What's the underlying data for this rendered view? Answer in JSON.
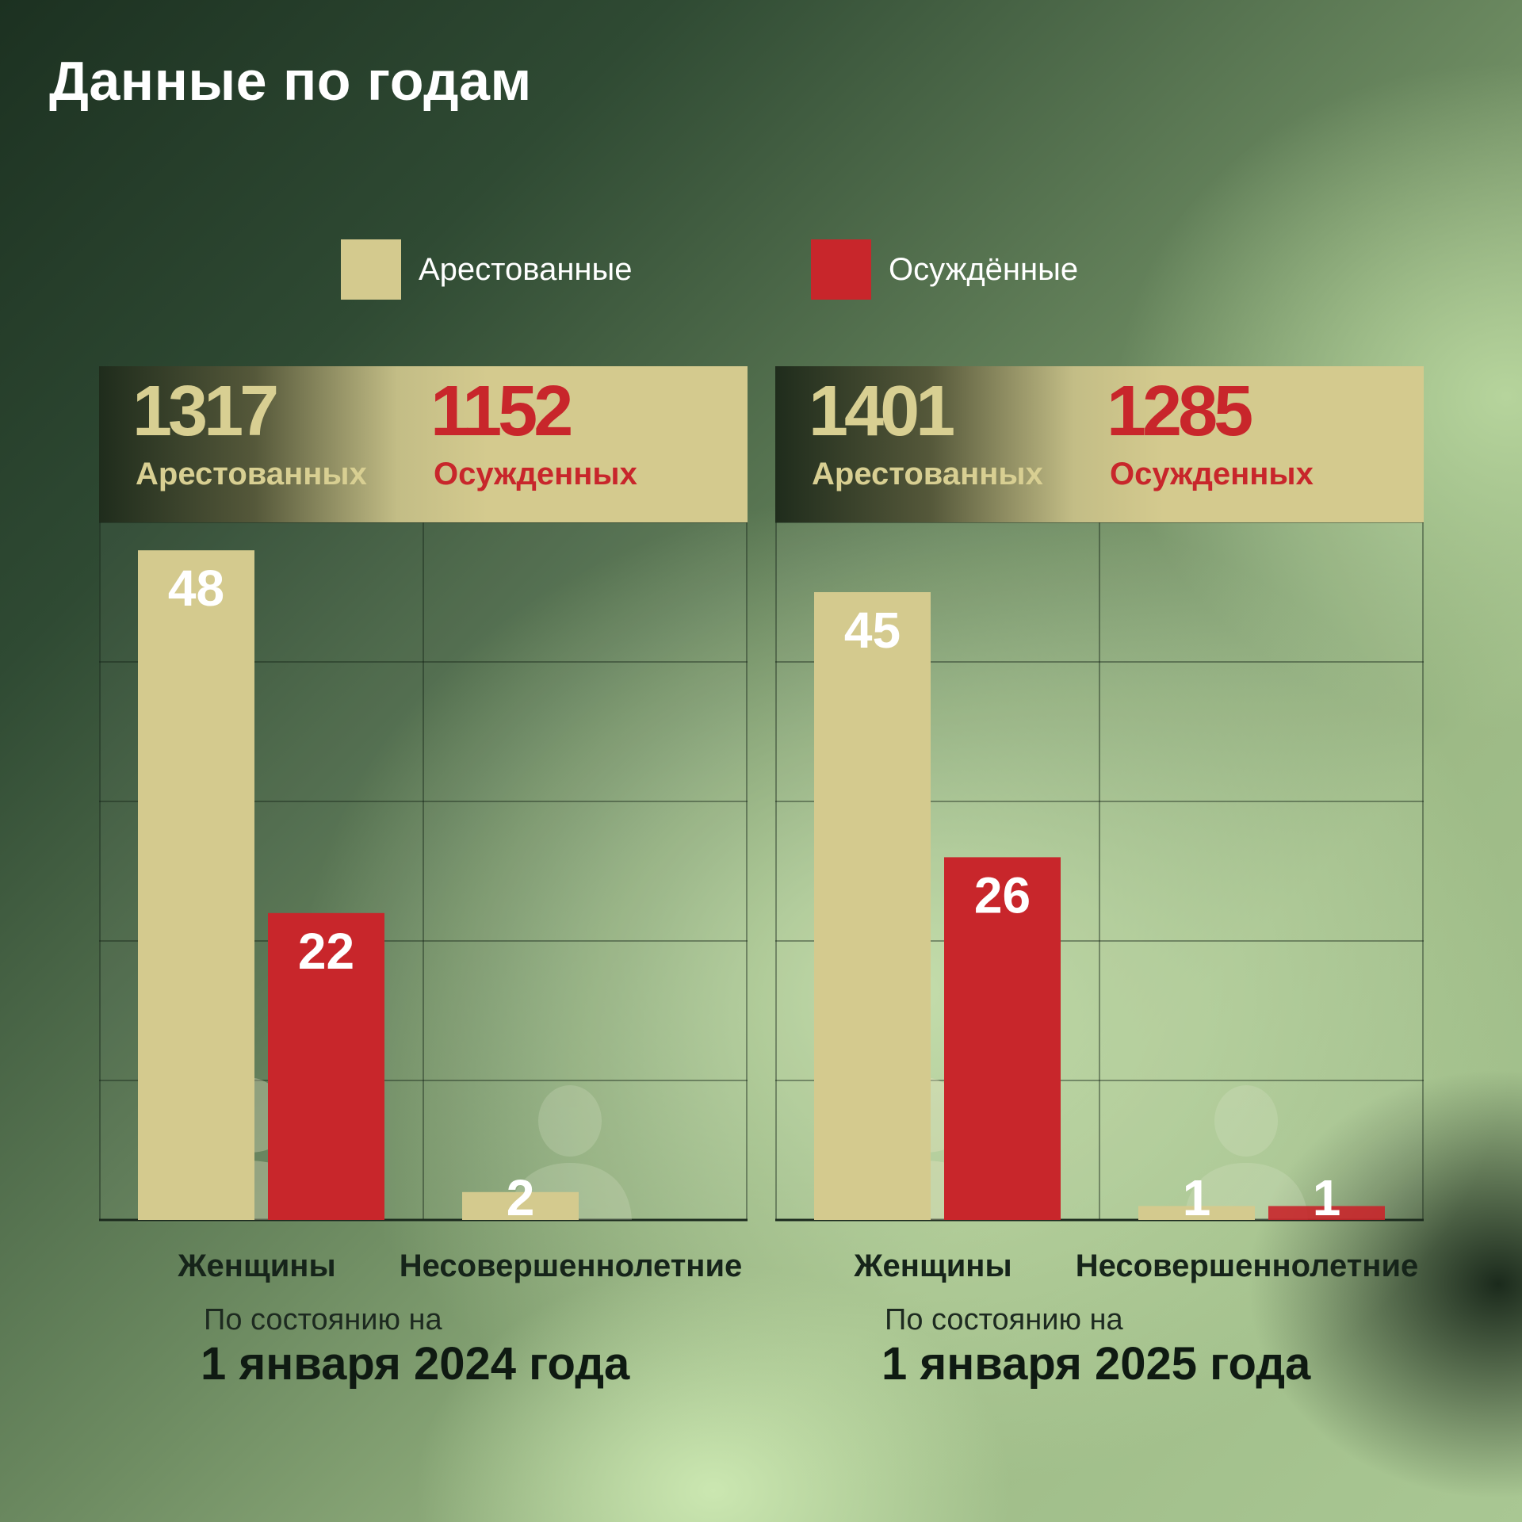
{
  "title": "Данные по годам",
  "legend": [
    {
      "label": "Арестованные",
      "color": "#d4ca8e"
    },
    {
      "label": "Осуждённые",
      "color": "#c8262b"
    }
  ],
  "panels": [
    {
      "arrested_total": "1317",
      "arrested_label": "Арестованных",
      "convicted_total": "1152",
      "convicted_label": "Осужденных",
      "categories": [
        "Женщины",
        "Несовершеннолетние"
      ],
      "date_prefix": "По состоянию на",
      "date": "1 января 2024 года"
    },
    {
      "arrested_total": "1401",
      "arrested_label": "Арестованных",
      "convicted_total": "1285",
      "convicted_label": "Осужденных",
      "categories": [
        "Женщины",
        "Несовершеннолетние"
      ],
      "date_prefix": "По состоянию на",
      "date": "1 января 2025 года"
    }
  ],
  "chart_data": [
    {
      "type": "bar",
      "title": "",
      "categories": [
        "Женщины",
        "Несовершеннолетние"
      ],
      "series": [
        {
          "name": "Арестованные",
          "values": [
            48,
            2
          ],
          "color": "#d4ca8e"
        },
        {
          "name": "Осуждённые",
          "values": [
            22,
            0
          ],
          "color": "#c8262b"
        }
      ],
      "ylim": [
        0,
        50
      ],
      "grid": true,
      "totals": {
        "Арестованные": 1317,
        "Осуждённые": 1152
      },
      "as_of": "1 января 2024 года"
    },
    {
      "type": "bar",
      "title": "",
      "categories": [
        "Женщины",
        "Несовершеннолетние"
      ],
      "series": [
        {
          "name": "Арестованные",
          "values": [
            45,
            1
          ],
          "color": "#d4ca8e"
        },
        {
          "name": "Осуждённые",
          "values": [
            26,
            1
          ],
          "color": "#c8262b"
        }
      ],
      "ylim": [
        0,
        50
      ],
      "grid": true,
      "totals": {
        "Арестованные": 1401,
        "Осуждённые": 1285
      },
      "as_of": "1 января 2025 года"
    }
  ]
}
